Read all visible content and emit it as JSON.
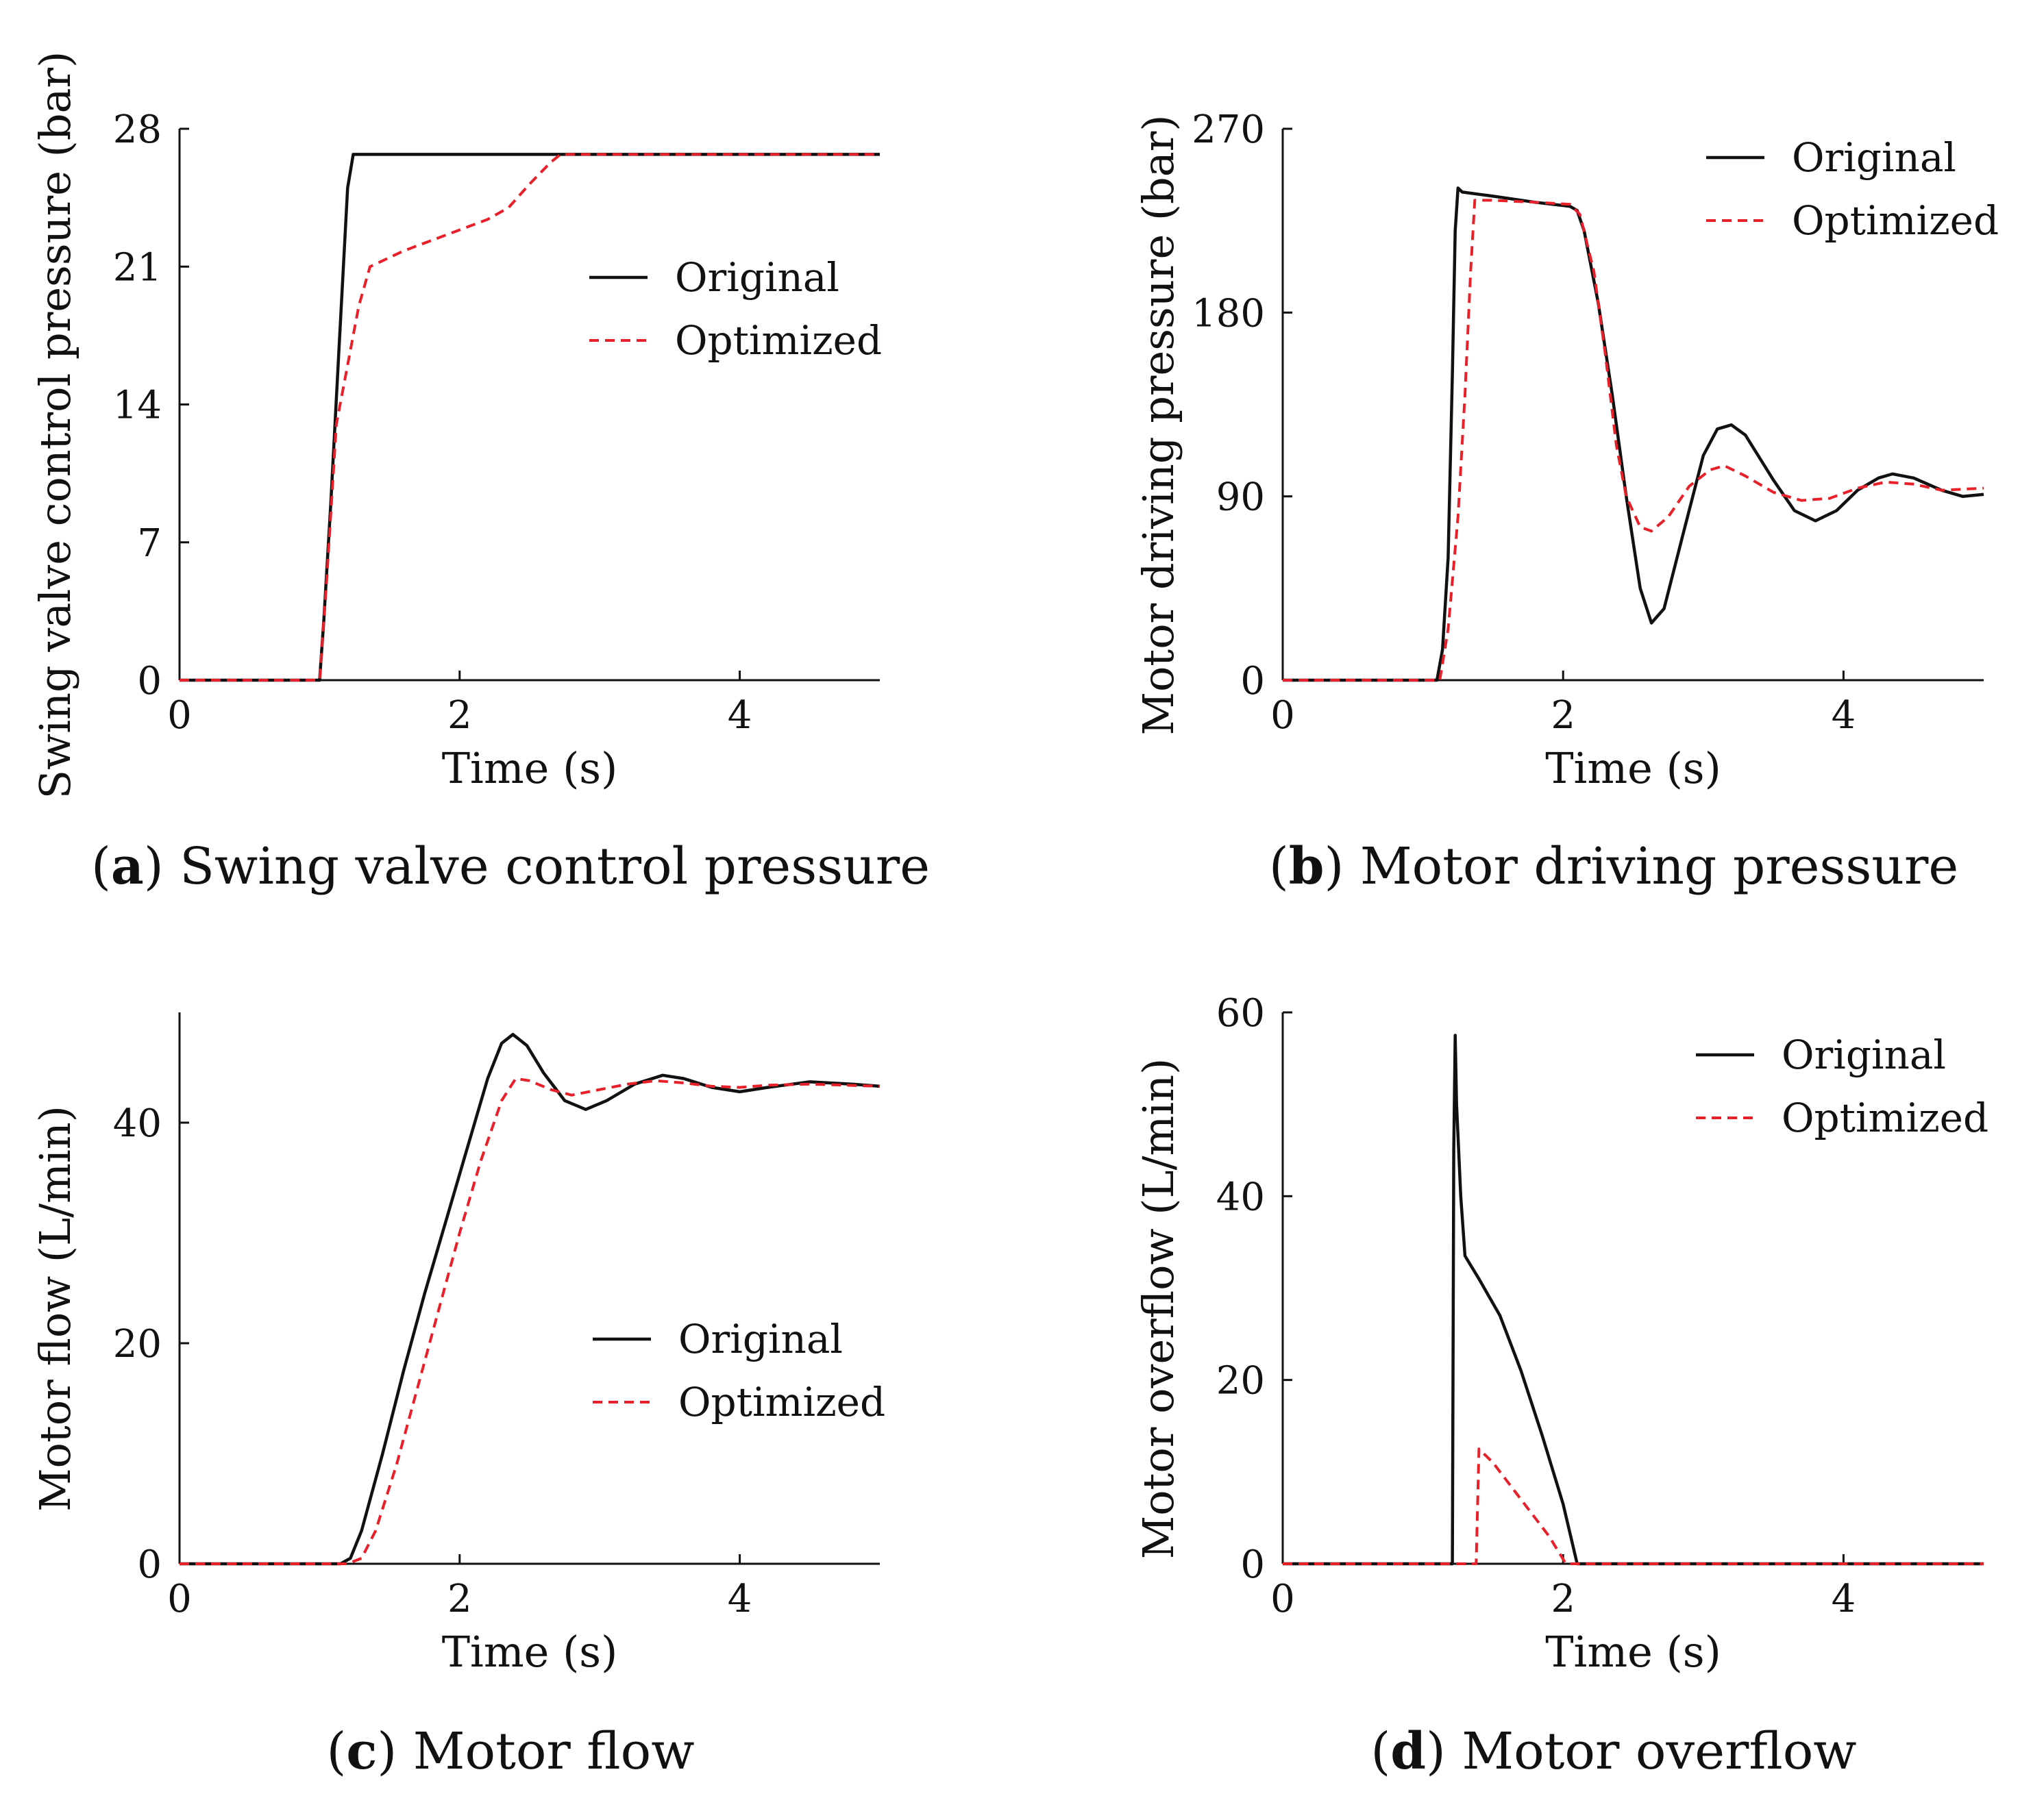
{
  "colors": {
    "original": "#111111",
    "optimized": "#e8202a",
    "axis": "#111111"
  },
  "chart_data": [
    {
      "id": "a",
      "type": "line",
      "caption_letter": "a",
      "caption_text": "Swing valve control pressure",
      "xlabel": "Time (s)",
      "ylabel": "Swing valve control pressure (bar)",
      "xlim": [
        0,
        5
      ],
      "ylim": [
        0,
        28
      ],
      "xticks": [
        0,
        2,
        4
      ],
      "yticks": [
        0,
        7,
        14,
        21,
        28
      ],
      "legend_position": "middle-right",
      "series": [
        {
          "name": "Original",
          "style": "solid",
          "points": [
            [
              0,
              0
            ],
            [
              1.0,
              0
            ],
            [
              1.03,
              3
            ],
            [
              1.08,
              9
            ],
            [
              1.14,
              17
            ],
            [
              1.2,
              25
            ],
            [
              1.24,
              26.7
            ],
            [
              2.7,
              26.7
            ],
            [
              5,
              26.7
            ]
          ]
        },
        {
          "name": "Optimized",
          "style": "dashed",
          "points": [
            [
              0,
              0
            ],
            [
              1.0,
              0
            ],
            [
              1.05,
              5
            ],
            [
              1.12,
              13
            ],
            [
              1.2,
              16
            ],
            [
              1.28,
              19
            ],
            [
              1.36,
              21
            ],
            [
              1.6,
              21.8
            ],
            [
              1.9,
              22.6
            ],
            [
              2.2,
              23.4
            ],
            [
              2.35,
              24
            ],
            [
              2.5,
              25.2
            ],
            [
              2.65,
              26.3
            ],
            [
              2.72,
              26.7
            ],
            [
              5,
              26.7
            ]
          ]
        }
      ]
    },
    {
      "id": "b",
      "type": "line",
      "caption_letter": "b",
      "caption_text": "Motor driving pressure",
      "xlabel": "Time (s)",
      "ylabel": "Motor driving pressure (bar)",
      "xlim": [
        0,
        5
      ],
      "ylim": [
        0,
        270
      ],
      "xticks": [
        0,
        2,
        4
      ],
      "yticks": [
        0,
        90,
        180,
        270
      ],
      "legend_position": "top-right",
      "series": [
        {
          "name": "Original",
          "style": "solid",
          "points": [
            [
              0,
              0
            ],
            [
              1.1,
              0
            ],
            [
              1.14,
              15
            ],
            [
              1.18,
              60
            ],
            [
              1.21,
              150
            ],
            [
              1.23,
              220
            ],
            [
              1.25,
              241
            ],
            [
              1.28,
              239
            ],
            [
              1.5,
              237
            ],
            [
              1.8,
              234
            ],
            [
              2.05,
              232
            ],
            [
              2.1,
              230
            ],
            [
              2.15,
              220
            ],
            [
              2.25,
              185
            ],
            [
              2.35,
              140
            ],
            [
              2.45,
              90
            ],
            [
              2.55,
              45
            ],
            [
              2.63,
              28
            ],
            [
              2.72,
              35
            ],
            [
              2.85,
              70
            ],
            [
              3.0,
              110
            ],
            [
              3.1,
              123
            ],
            [
              3.2,
              125
            ],
            [
              3.3,
              120
            ],
            [
              3.5,
              98
            ],
            [
              3.65,
              83
            ],
            [
              3.8,
              78
            ],
            [
              3.95,
              83
            ],
            [
              4.1,
              93
            ],
            [
              4.25,
              99
            ],
            [
              4.35,
              101
            ],
            [
              4.5,
              99
            ],
            [
              4.7,
              93
            ],
            [
              4.85,
              90
            ],
            [
              5.0,
              91
            ]
          ]
        },
        {
          "name": "Optimized",
          "style": "dashed",
          "points": [
            [
              0,
              0
            ],
            [
              1.12,
              0
            ],
            [
              1.18,
              25
            ],
            [
              1.25,
              80
            ],
            [
              1.3,
              140
            ],
            [
              1.34,
              200
            ],
            [
              1.37,
              235
            ],
            [
              1.5,
              235
            ],
            [
              1.8,
              234
            ],
            [
              2.05,
              233
            ],
            [
              2.12,
              228
            ],
            [
              2.22,
              200
            ],
            [
              2.3,
              160
            ],
            [
              2.38,
              115
            ],
            [
              2.45,
              90
            ],
            [
              2.55,
              75
            ],
            [
              2.63,
              73
            ],
            [
              2.75,
              80
            ],
            [
              2.9,
              95
            ],
            [
              3.05,
              103
            ],
            [
              3.15,
              105
            ],
            [
              3.3,
              100
            ],
            [
              3.5,
              92
            ],
            [
              3.7,
              88
            ],
            [
              3.9,
              89
            ],
            [
              4.1,
              94
            ],
            [
              4.3,
              97
            ],
            [
              4.5,
              96
            ],
            [
              4.7,
              93
            ],
            [
              5.0,
              94
            ]
          ]
        }
      ]
    },
    {
      "id": "c",
      "type": "line",
      "caption_letter": "c",
      "caption_text": "Motor flow",
      "xlabel": "Time (s)",
      "ylabel": "Motor flow (L/min)",
      "xlim": [
        0,
        5
      ],
      "ylim": [
        0,
        50
      ],
      "xticks": [
        0,
        2,
        4
      ],
      "yticks": [
        0,
        20,
        40
      ],
      "legend_position": "middle-right",
      "series": [
        {
          "name": "Original",
          "style": "solid",
          "points": [
            [
              0,
              0
            ],
            [
              1.15,
              0
            ],
            [
              1.22,
              0.5
            ],
            [
              1.3,
              3
            ],
            [
              1.45,
              10
            ],
            [
              1.6,
              17.5
            ],
            [
              1.75,
              24.5
            ],
            [
              1.9,
              31
            ],
            [
              2.05,
              37.5
            ],
            [
              2.2,
              44
            ],
            [
              2.3,
              47.2
            ],
            [
              2.38,
              48
            ],
            [
              2.48,
              47
            ],
            [
              2.6,
              44.5
            ],
            [
              2.75,
              42
            ],
            [
              2.9,
              41.2
            ],
            [
              3.05,
              42
            ],
            [
              3.25,
              43.5
            ],
            [
              3.45,
              44.3
            ],
            [
              3.6,
              44
            ],
            [
              3.8,
              43.2
            ],
            [
              4.0,
              42.8
            ],
            [
              4.2,
              43.2
            ],
            [
              4.5,
              43.7
            ],
            [
              4.8,
              43.5
            ],
            [
              5.0,
              43.3
            ]
          ]
        },
        {
          "name": "Optimized",
          "style": "dashed",
          "points": [
            [
              0,
              0
            ],
            [
              1.2,
              0
            ],
            [
              1.3,
              0.5
            ],
            [
              1.4,
              3
            ],
            [
              1.55,
              9
            ],
            [
              1.7,
              16
            ],
            [
              1.85,
              23
            ],
            [
              2.0,
              30
            ],
            [
              2.15,
              36.5
            ],
            [
              2.3,
              42
            ],
            [
              2.4,
              44
            ],
            [
              2.5,
              43.8
            ],
            [
              2.65,
              43
            ],
            [
              2.8,
              42.5
            ],
            [
              3.0,
              43
            ],
            [
              3.2,
              43.5
            ],
            [
              3.4,
              43.8
            ],
            [
              3.6,
              43.6
            ],
            [
              3.8,
              43.3
            ],
            [
              4.0,
              43.2
            ],
            [
              4.2,
              43.4
            ],
            [
              4.5,
              43.5
            ],
            [
              5.0,
              43.3
            ]
          ]
        }
      ]
    },
    {
      "id": "d",
      "type": "line",
      "caption_letter": "d",
      "caption_text": "Motor overflow",
      "xlabel": "Time (s)",
      "ylabel": "Motor overflow (L/min)",
      "xlim": [
        0,
        5
      ],
      "ylim": [
        0,
        60
      ],
      "xticks": [
        0,
        2,
        4
      ],
      "yticks": [
        0,
        20,
        40,
        60
      ],
      "legend_position": "top-right",
      "series": [
        {
          "name": "Original",
          "style": "solid",
          "points": [
            [
              0,
              0
            ],
            [
              1.21,
              0
            ],
            [
              1.22,
              45
            ],
            [
              1.23,
              57.5
            ],
            [
              1.24,
              50
            ],
            [
              1.27,
              40
            ],
            [
              1.3,
              33.5
            ],
            [
              1.4,
              31
            ],
            [
              1.55,
              27
            ],
            [
              1.7,
              21
            ],
            [
              1.85,
              14
            ],
            [
              2.0,
              6.5
            ],
            [
              2.1,
              0
            ],
            [
              5,
              0
            ]
          ]
        },
        {
          "name": "Optimized",
          "style": "dashed",
          "points": [
            [
              0,
              0
            ],
            [
              1.38,
              0
            ],
            [
              1.4,
              12.5
            ],
            [
              1.5,
              11
            ],
            [
              1.7,
              7
            ],
            [
              1.9,
              3
            ],
            [
              2.02,
              0
            ],
            [
              5,
              0
            ]
          ]
        }
      ]
    }
  ]
}
